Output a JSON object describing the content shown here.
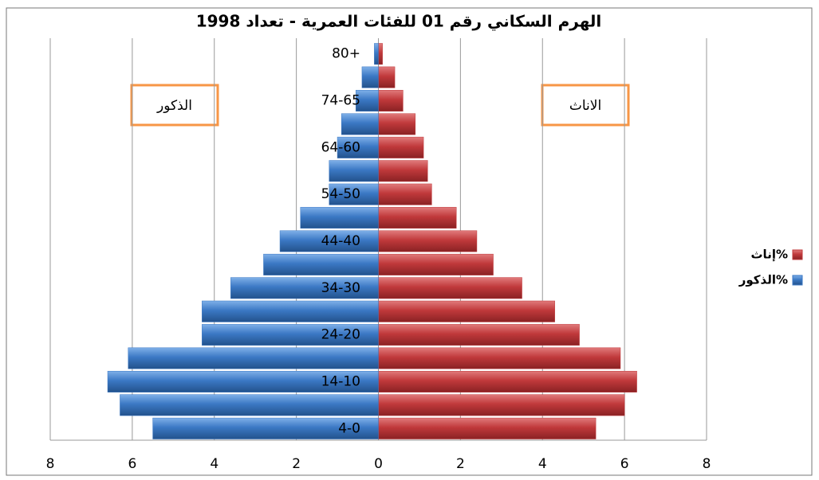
{
  "chart_data": {
    "type": "pyramid",
    "title": "الهرم السكاني  رقم 01 للفئات العمرية  - تعداد  1998",
    "categories": [
      "4-0",
      null,
      "14-10",
      null,
      "24-20",
      null,
      "34-30",
      null,
      "44-40",
      null,
      "54-50",
      null,
      "64-60",
      null,
      "74-65",
      null,
      "80+"
    ],
    "series": [
      {
        "name": "إناث%",
        "color": "#c0393b",
        "side": "right",
        "values": [
          5.3,
          6.0,
          6.3,
          5.9,
          4.9,
          4.3,
          3.5,
          2.8,
          2.4,
          1.9,
          1.3,
          1.2,
          1.1,
          0.9,
          0.6,
          0.4,
          0.1
        ]
      },
      {
        "name": "الذكور%",
        "color": "#3b78c4",
        "side": "left",
        "values": [
          5.5,
          6.3,
          6.6,
          6.1,
          4.3,
          4.3,
          3.6,
          2.8,
          2.4,
          1.9,
          1.2,
          1.2,
          1.0,
          0.9,
          0.55,
          0.4,
          0.1
        ]
      }
    ],
    "annotations": [
      "الذكور",
      "الاناث"
    ],
    "xlim": [
      -8,
      8
    ],
    "xticks": [
      {
        "value": -8,
        "label": "8"
      },
      {
        "value": -6,
        "label": "6"
      },
      {
        "value": -4,
        "label": "4"
      },
      {
        "value": -2,
        "label": "2"
      },
      0,
      2,
      4,
      6,
      8
    ],
    "grid": true,
    "legend": "right"
  }
}
